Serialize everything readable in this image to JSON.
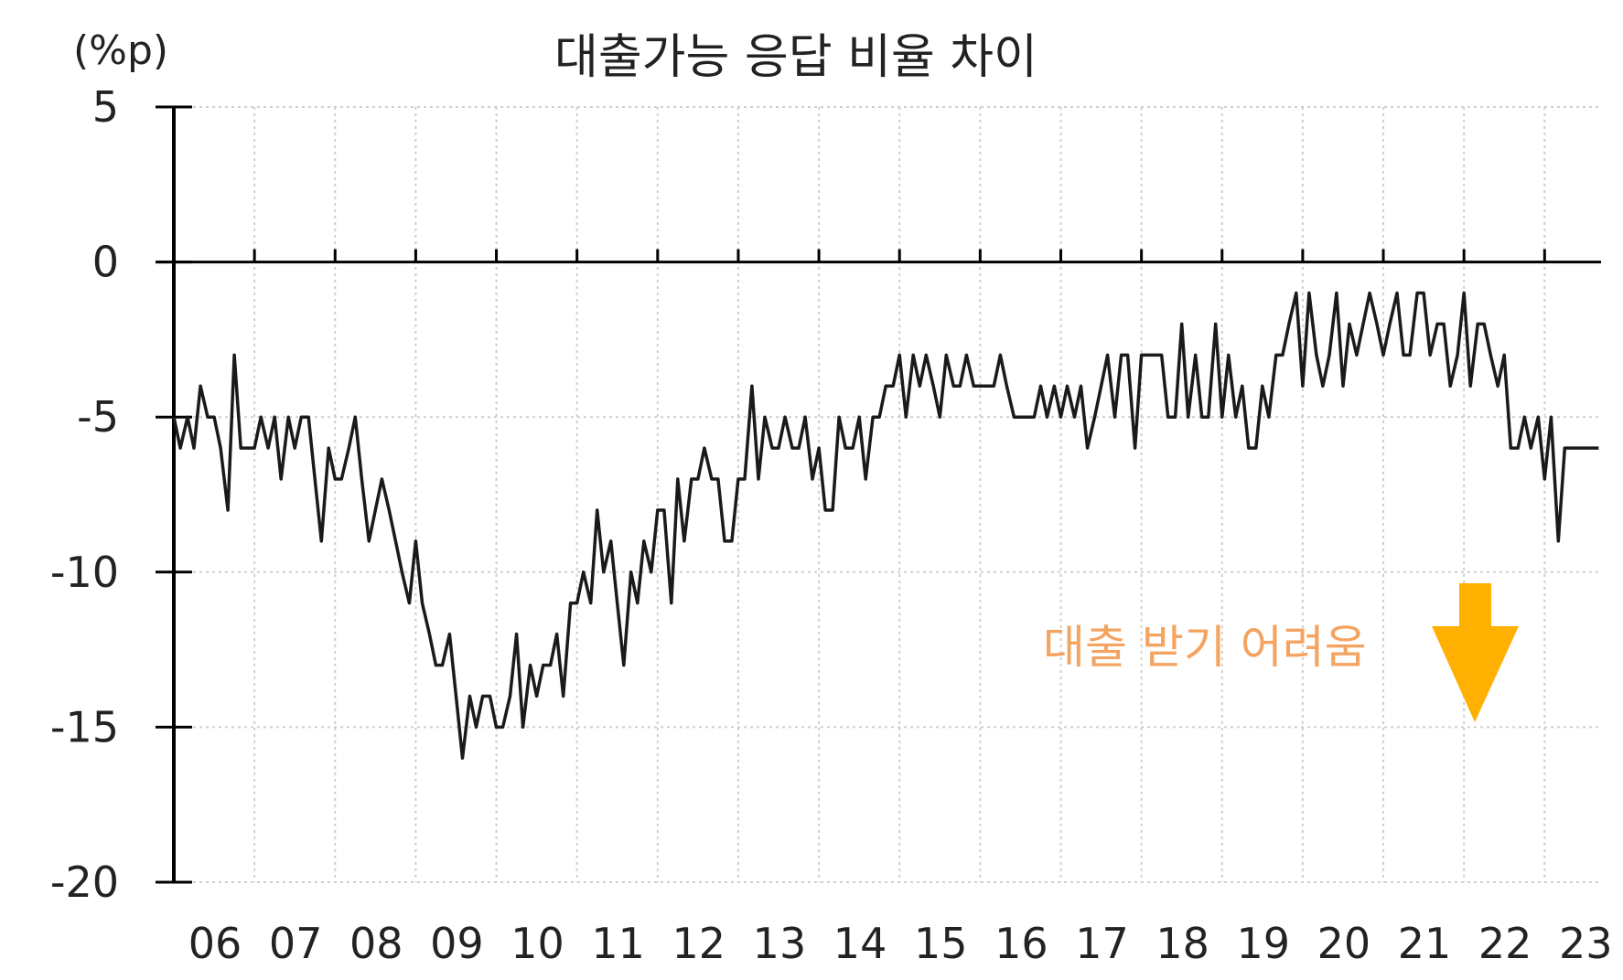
{
  "chart_data": {
    "type": "line",
    "title": "대출가능 응답 비율 차이",
    "ylabel": "(%p)",
    "xlabel": "",
    "ylim": [
      -20,
      5
    ],
    "yticks": [
      5,
      0,
      -5,
      -10,
      -15,
      -20
    ],
    "ytick_labels": [
      "5",
      "0",
      "-5",
      "-10",
      "-15",
      "-20"
    ],
    "xlim": [
      2006,
      2023.7
    ],
    "xticks": [
      2006,
      2007,
      2008,
      2009,
      2010,
      2011,
      2012,
      2013,
      2014,
      2015,
      2016,
      2017,
      2018,
      2019,
      2020,
      2021,
      2022,
      2023
    ],
    "xtick_labels": [
      "06",
      "07",
      "08",
      "09",
      "10",
      "11",
      "12",
      "13",
      "14",
      "15",
      "16",
      "17",
      "18",
      "19",
      "20",
      "21",
      "22",
      "23"
    ],
    "grid": true,
    "annotation": {
      "text": "대출 받기 어려움",
      "arrow_direction": "down",
      "text_color": "#f4a460",
      "arrow_color": "#ffb000"
    },
    "line_color": "#1a1a1a",
    "series": [
      {
        "x": [
          2006.0,
          2006.08,
          2006.17,
          2006.25,
          2006.33,
          2006.42,
          2006.5,
          2006.58,
          2006.67,
          2006.75,
          2006.83,
          2006.92,
          2007.0,
          2007.08,
          2007.17,
          2007.25,
          2007.33,
          2007.42,
          2007.5,
          2007.58,
          2007.67,
          2007.75,
          2007.83,
          2007.92,
          2008.0,
          2008.08,
          2008.17,
          2008.25,
          2008.33,
          2008.42,
          2008.5,
          2008.58,
          2008.67,
          2008.75,
          2008.83,
          2008.92,
          2009.0,
          2009.08,
          2009.17,
          2009.25,
          2009.33,
          2009.42,
          2009.5,
          2009.58,
          2009.67,
          2009.75,
          2009.83,
          2009.92,
          2010.0,
          2010.08,
          2010.17,
          2010.25,
          2010.33,
          2010.42,
          2010.5,
          2010.58,
          2010.67,
          2010.75,
          2010.83,
          2010.92,
          2011.0,
          2011.08,
          2011.17,
          2011.25,
          2011.33,
          2011.42,
          2011.5,
          2011.58,
          2011.67,
          2011.75,
          2011.83,
          2011.92,
          2012.0,
          2012.08,
          2012.17,
          2012.25,
          2012.33,
          2012.42,
          2012.5,
          2012.58,
          2012.67,
          2012.75,
          2012.83,
          2012.92,
          2013.0,
          2013.08,
          2013.17,
          2013.25,
          2013.33,
          2013.42,
          2013.5,
          2013.58,
          2013.67,
          2013.75,
          2013.83,
          2013.92,
          2014.0,
          2014.08,
          2014.17,
          2014.25,
          2014.33,
          2014.42,
          2014.5,
          2014.58,
          2014.67,
          2014.75,
          2014.83,
          2014.92,
          2015.0,
          2015.08,
          2015.17,
          2015.25,
          2015.33,
          2015.42,
          2015.5,
          2015.58,
          2015.67,
          2015.75,
          2015.83,
          2015.92,
          2016.0,
          2016.08,
          2016.17,
          2016.25,
          2016.33,
          2016.42,
          2016.5,
          2016.58,
          2016.67,
          2016.75,
          2016.83,
          2016.92,
          2017.0,
          2017.08,
          2017.17,
          2017.25,
          2017.33,
          2017.42,
          2017.5,
          2017.58,
          2017.67,
          2017.75,
          2017.83,
          2017.92,
          2018.0,
          2018.08,
          2018.17,
          2018.25,
          2018.33,
          2018.42,
          2018.5,
          2018.58,
          2018.67,
          2018.75,
          2018.83,
          2018.92,
          2019.0,
          2019.08,
          2019.17,
          2019.25,
          2019.33,
          2019.42,
          2019.5,
          2019.58,
          2019.67,
          2019.75,
          2019.83,
          2019.92,
          2020.0,
          2020.08,
          2020.17,
          2020.25,
          2020.33,
          2020.42,
          2020.5,
          2020.58,
          2020.67,
          2020.75,
          2020.83,
          2020.92,
          2021.0,
          2021.08,
          2021.17,
          2021.25,
          2021.33,
          2021.42,
          2021.5,
          2021.58,
          2021.67,
          2021.75,
          2021.83,
          2021.92,
          2022.0,
          2022.08,
          2022.17,
          2022.25,
          2022.33,
          2022.42,
          2022.5,
          2022.58,
          2022.67,
          2022.75,
          2022.83,
          2022.92,
          2023.0,
          2023.08,
          2023.17,
          2023.25,
          2023.33,
          2023.42,
          2023.5,
          2023.58,
          2023.67
        ],
        "y": [
          -5,
          -6,
          -5,
          -6,
          -4,
          -5,
          -5,
          -6,
          -8,
          -3,
          -6,
          -6,
          -6,
          -5,
          -6,
          -5,
          -7,
          -5,
          -6,
          -5,
          -5,
          -7,
          -9,
          -6,
          -7,
          -7,
          -6,
          -5,
          -7,
          -9,
          -8,
          -7,
          -8,
          -9,
          -10,
          -11,
          -9,
          -11,
          -12,
          -13,
          -13,
          -12,
          -14,
          -16,
          -14,
          -15,
          -14,
          -14,
          -15,
          -15,
          -14,
          -12,
          -15,
          -13,
          -14,
          -13,
          -13,
          -12,
          -14,
          -11,
          -11,
          -10,
          -11,
          -8,
          -10,
          -9,
          -11,
          -13,
          -10,
          -11,
          -9,
          -10,
          -8,
          -8,
          -11,
          -7,
          -9,
          -7,
          -7,
          -6,
          -7,
          -7,
          -9,
          -9,
          -7,
          -7,
          -4,
          -7,
          -5,
          -6,
          -6,
          -5,
          -6,
          -6,
          -5,
          -7,
          -6,
          -8,
          -8,
          -5,
          -6,
          -6,
          -5,
          -7,
          -5,
          -5,
          -4,
          -4,
          -3,
          -5,
          -3,
          -4,
          -3,
          -4,
          -5,
          -3,
          -4,
          -4,
          -3,
          -4,
          -4,
          -4,
          -4,
          -3,
          -4,
          -5,
          -5,
          -5,
          -5,
          -4,
          -5,
          -4,
          -5,
          -4,
          -5,
          -4,
          -6,
          -5,
          -4,
          -3,
          -5,
          -3,
          -3,
          -6,
          -3,
          -3,
          -3,
          -3,
          -5,
          -5,
          -2,
          -5,
          -3,
          -5,
          -5,
          -2,
          -5,
          -3,
          -5,
          -4,
          -6,
          -6,
          -4,
          -5,
          -3,
          -3,
          -2,
          -1,
          -4,
          -1,
          -3,
          -4,
          -3,
          -1,
          -4,
          -2,
          -3,
          -2,
          -1,
          -2,
          -3,
          -2,
          -1,
          -3,
          -3,
          -1,
          -1,
          -3,
          -2,
          -2,
          -4,
          -3,
          -1,
          -4,
          -2,
          -2,
          -3,
          -4,
          -3,
          -6,
          -6,
          -5,
          -6,
          -5,
          -7,
          -5,
          -9,
          -6,
          -6,
          -6,
          -6,
          -6,
          -6
        ]
      }
    ]
  }
}
